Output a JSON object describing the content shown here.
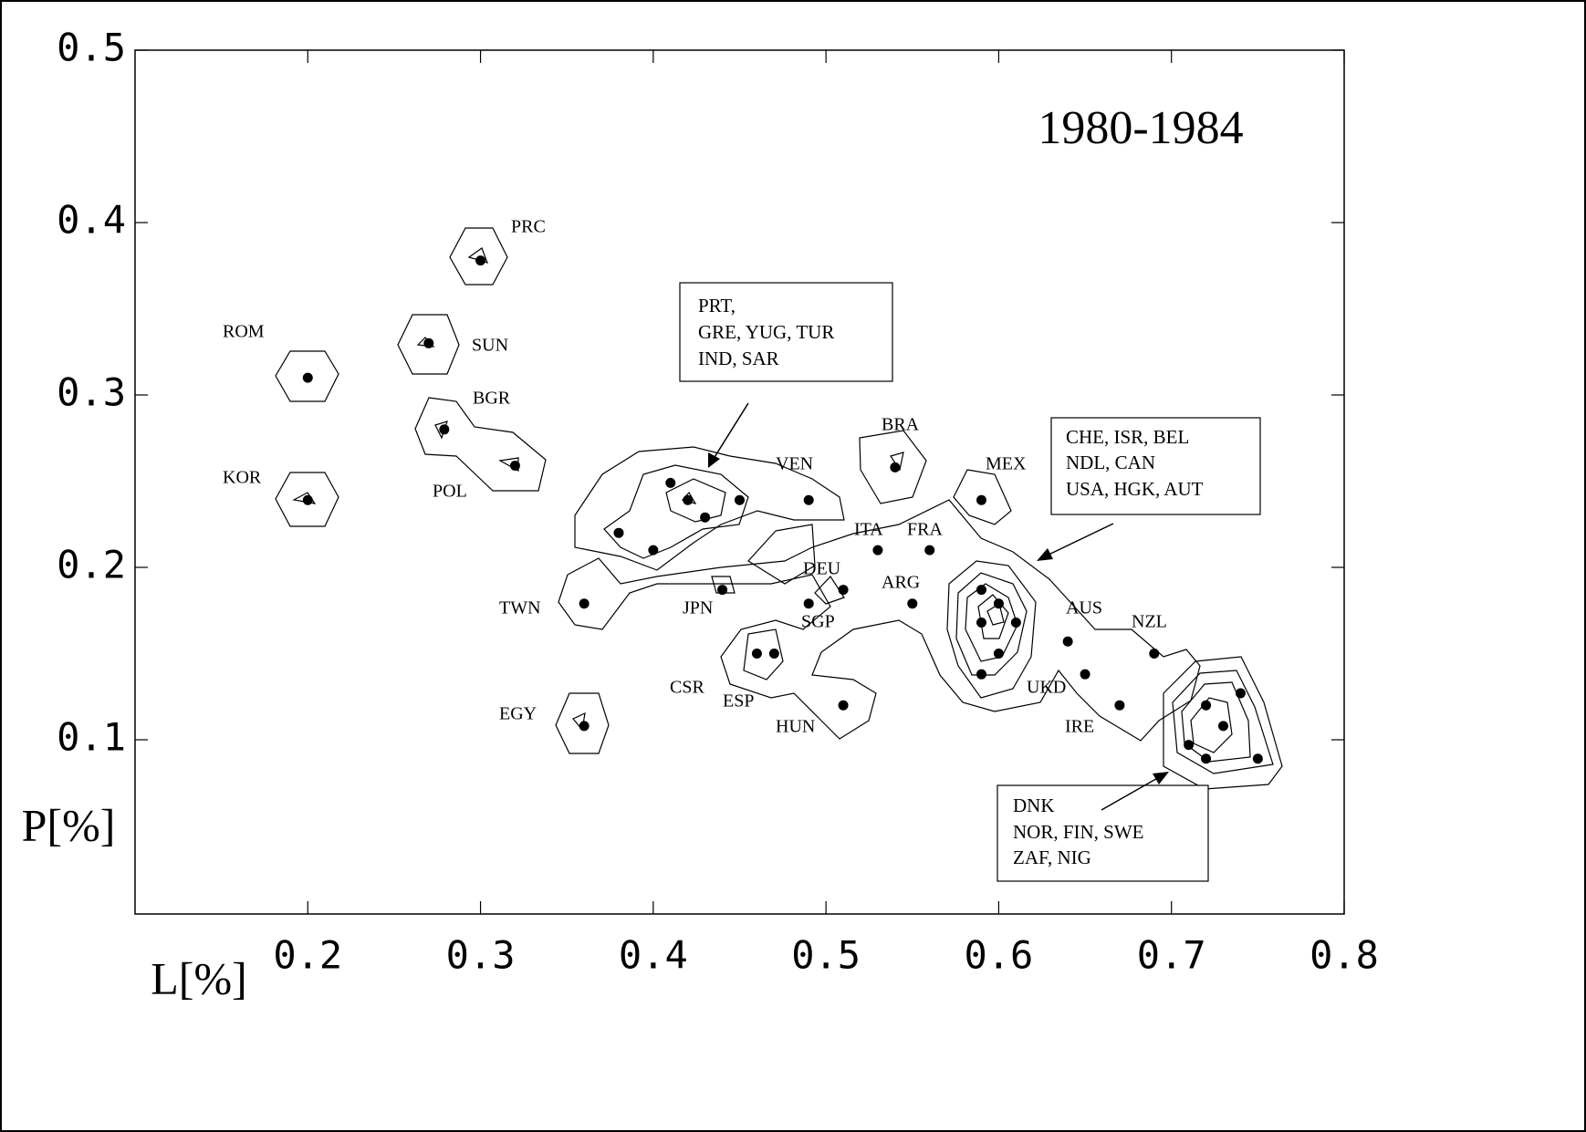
{
  "chart_data": {
    "type": "scatter",
    "title": "1980-1984",
    "xlabel": "L[%]",
    "ylabel": "P[%]",
    "xlim": [
      0.1,
      0.8
    ],
    "ylim": [
      0,
      0.5
    ],
    "xticks": [
      0.2,
      0.3,
      0.4,
      0.5,
      0.6,
      0.7,
      0.8
    ],
    "yticks": [
      0.1,
      0.2,
      0.3,
      0.4,
      0.5
    ],
    "color": "#000000",
    "x": [
      0.2,
      0.2,
      0.3,
      0.27,
      0.279,
      0.32,
      0.36,
      0.36,
      0.41,
      0.42,
      0.43,
      0.45,
      0.38,
      0.4,
      0.44,
      0.49,
      0.49,
      0.51,
      0.53,
      0.56,
      0.54,
      0.55,
      0.59,
      0.59,
      0.6,
      0.59,
      0.61,
      0.6,
      0.59,
      0.46,
      0.47,
      0.51,
      0.64,
      0.65,
      0.67,
      0.69,
      0.74,
      0.72,
      0.73,
      0.71,
      0.72,
      0.75
    ],
    "values": [
      0.31,
      0.239,
      0.378,
      0.33,
      0.28,
      0.259,
      0.179,
      0.108,
      0.249,
      0.239,
      0.229,
      0.239,
      0.22,
      0.21,
      0.187,
      0.239,
      0.179,
      0.187,
      0.21,
      0.21,
      0.258,
      0.179,
      0.239,
      0.187,
      0.179,
      0.168,
      0.168,
      0.15,
      0.138,
      0.15,
      0.15,
      0.12,
      0.157,
      0.138,
      0.12,
      0.15,
      0.127,
      0.12,
      0.108,
      0.097,
      0.089,
      0.089
    ],
    "country_labels": [
      "ROM",
      "PRC",
      "SUN",
      "BGR",
      "KOR",
      "POL",
      "TWN",
      "EGY",
      "JPN",
      "CSR",
      "ESP",
      "HUN",
      "SGP",
      "DEU",
      "VEN",
      "ITA",
      "FRA",
      "ARG",
      "BRA",
      "MEX",
      "AUS",
      "NZL",
      "UKD",
      "IRE"
    ],
    "annotations": [
      [
        "PRT,",
        "GRE, YUG, TUR",
        "IND, SAR"
      ],
      [
        "CHE, ISR, BEL",
        "NDL, CAN",
        "USA, HGK, AUT"
      ],
      [
        "DNK",
        "NOR, FIN, SWE",
        "ZAF, NIG"
      ]
    ]
  }
}
